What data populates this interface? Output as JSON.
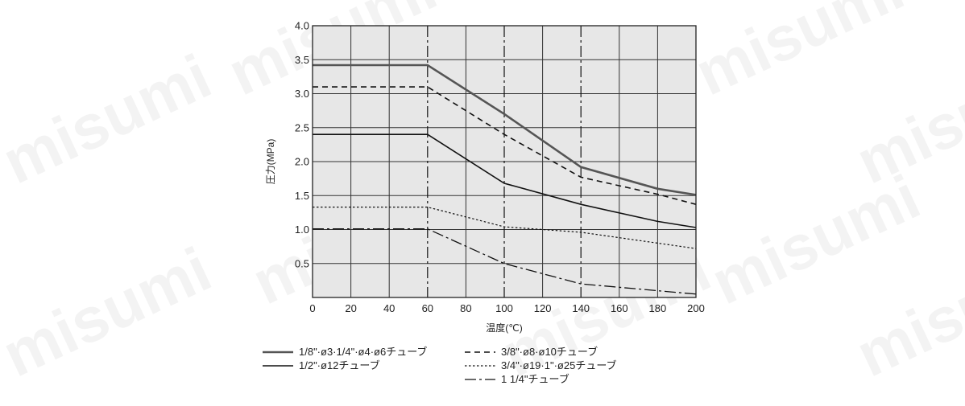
{
  "watermark": {
    "text": "misumi"
  },
  "chart_data": {
    "type": "line",
    "title": "",
    "xlabel": "温度(℃)",
    "ylabel": "圧力(MPa)",
    "xlim": [
      0,
      200
    ],
    "ylim": [
      0,
      4.0
    ],
    "x_ticks": [
      0,
      20,
      40,
      60,
      80,
      100,
      120,
      140,
      160,
      180,
      200
    ],
    "x_tick_labels": [
      "0",
      "20",
      "40",
      "60",
      "80",
      "100",
      "120",
      "140",
      "160",
      "180",
      "200"
    ],
    "y_ticks": [
      0.5,
      1.0,
      1.5,
      2.0,
      2.5,
      3.0,
      3.5,
      4.0
    ],
    "y_tick_labels": [
      "0.5",
      "1.0",
      "1.5",
      "2.0",
      "2.5",
      "3.0",
      "3.5",
      "4.0"
    ],
    "grid": true,
    "reference_lines_x": [
      60,
      100,
      140
    ],
    "legend_position": "bottom",
    "series": [
      {
        "name": "1/8\"·ø3·1/4\"·ø4·ø6チューブ",
        "style": "thick-solid",
        "color": "#555555",
        "x": [
          0,
          60,
          100,
          140,
          180,
          200
        ],
        "y": [
          3.42,
          3.42,
          2.7,
          1.92,
          1.6,
          1.51
        ]
      },
      {
        "name": "3/8\"·ø8·ø10チューブ",
        "style": "dashed",
        "color": "#111111",
        "x": [
          0,
          60,
          100,
          140,
          180,
          200
        ],
        "y": [
          3.1,
          3.1,
          2.4,
          1.77,
          1.52,
          1.37
        ]
      },
      {
        "name": "1/2\"·ø12チューブ",
        "style": "solid",
        "color": "#111111",
        "x": [
          0,
          60,
          100,
          140,
          180,
          200
        ],
        "y": [
          2.4,
          2.4,
          1.68,
          1.37,
          1.12,
          1.03
        ]
      },
      {
        "name": "3/4\"·ø19·1\"·ø25チューブ",
        "style": "dotted",
        "color": "#111111",
        "x": [
          0,
          60,
          100,
          140,
          180,
          200
        ],
        "y": [
          1.33,
          1.33,
          1.04,
          0.96,
          0.8,
          0.72
        ]
      },
      {
        "name": "1 1/4\"チューブ",
        "style": "dash-dot",
        "color": "#111111",
        "x": [
          0,
          60,
          100,
          140,
          180,
          200
        ],
        "y": [
          1.01,
          1.01,
          0.5,
          0.2,
          0.1,
          0.05
        ]
      }
    ]
  }
}
